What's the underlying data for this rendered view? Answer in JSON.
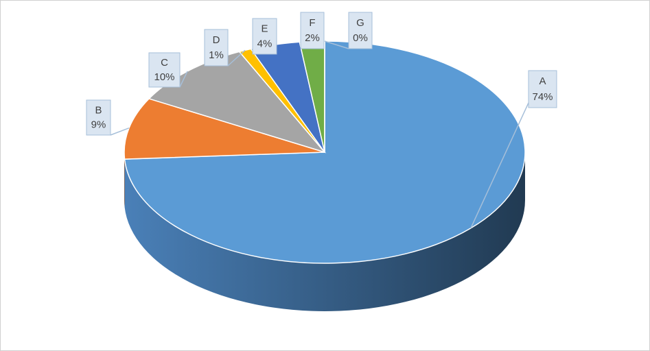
{
  "chart_data": {
    "type": "pie3d",
    "categories": [
      "A",
      "B",
      "C",
      "D",
      "E",
      "F",
      "G"
    ],
    "values": [
      74,
      9,
      10,
      1,
      4,
      2,
      0
    ],
    "value_labels": [
      "74%",
      "9%",
      "10%",
      "1%",
      "4%",
      "2%",
      "0%"
    ],
    "colors": [
      "#5b9bd5",
      "#ed7d31",
      "#a5a5a5",
      "#ffc000",
      "#4472c4",
      "#70ad47",
      "#264478"
    ]
  }
}
